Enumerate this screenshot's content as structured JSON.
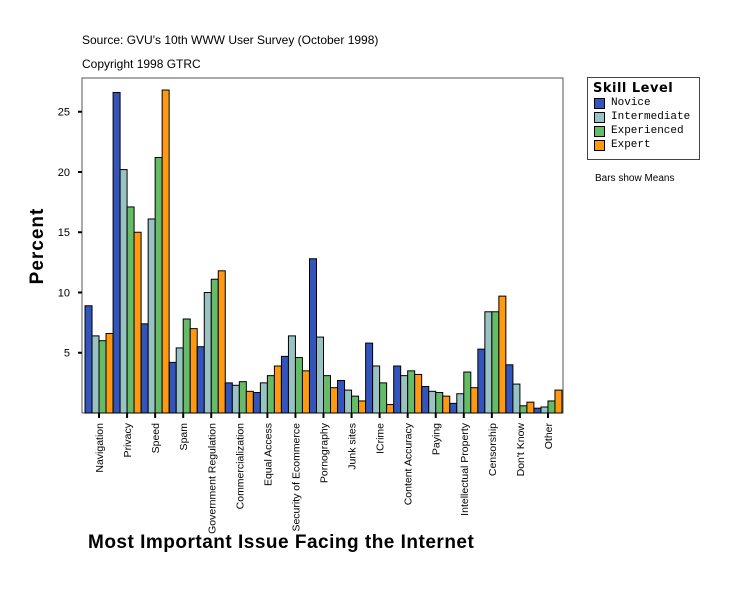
{
  "chart_data": {
    "type": "bar",
    "source": "Source: GVU's 10th WWW User Survey (October 1998)",
    "copyright": "Copyright 1998 GTRC",
    "xlabel": "Most Important Issue Facing the Internet",
    "ylabel": "Percent",
    "ylim": [
      0,
      27.8
    ],
    "yticks": [
      5,
      10,
      15,
      20,
      25
    ],
    "grid": false,
    "legend_title": "Skill Level",
    "legend_placement": "right",
    "note": "Bars show Means",
    "categories": [
      "Navigation",
      "Privacy",
      "Speed",
      "Spam",
      "Government Regulation",
      "Commercialization",
      "Equal Access",
      "Security of Ecommerce",
      "Pornography",
      "Junk sites",
      "ICrime",
      "Content Accuracy",
      "Paying",
      "Intellectual Property",
      "Censorship",
      "Don't Know",
      "Other"
    ],
    "series": [
      {
        "name": "Novice",
        "color": "#3355bb",
        "values": [
          8.9,
          26.6,
          7.4,
          4.2,
          5.5,
          2.5,
          1.7,
          4.7,
          12.8,
          2.7,
          5.8,
          3.9,
          2.2,
          0.8,
          5.3,
          4.0,
          0.4
        ]
      },
      {
        "name": "Intermediate",
        "color": "#99c2c2",
        "values": [
          6.4,
          20.2,
          16.1,
          5.4,
          10.0,
          2.3,
          2.5,
          6.4,
          6.3,
          1.9,
          3.9,
          3.1,
          1.8,
          1.6,
          8.4,
          2.4,
          0.5
        ]
      },
      {
        "name": "Experienced",
        "color": "#66bb66",
        "values": [
          6.0,
          17.1,
          21.2,
          7.8,
          11.1,
          2.6,
          3.1,
          4.6,
          3.1,
          1.4,
          2.5,
          3.5,
          1.7,
          3.4,
          8.4,
          0.6,
          1.0
        ]
      },
      {
        "name": "Expert",
        "color": "#ff9911",
        "values": [
          6.6,
          15.0,
          26.8,
          7.0,
          11.8,
          1.8,
          3.9,
          3.5,
          2.1,
          1.0,
          0.7,
          3.2,
          1.4,
          2.1,
          9.7,
          0.9,
          1.9
        ]
      }
    ]
  }
}
